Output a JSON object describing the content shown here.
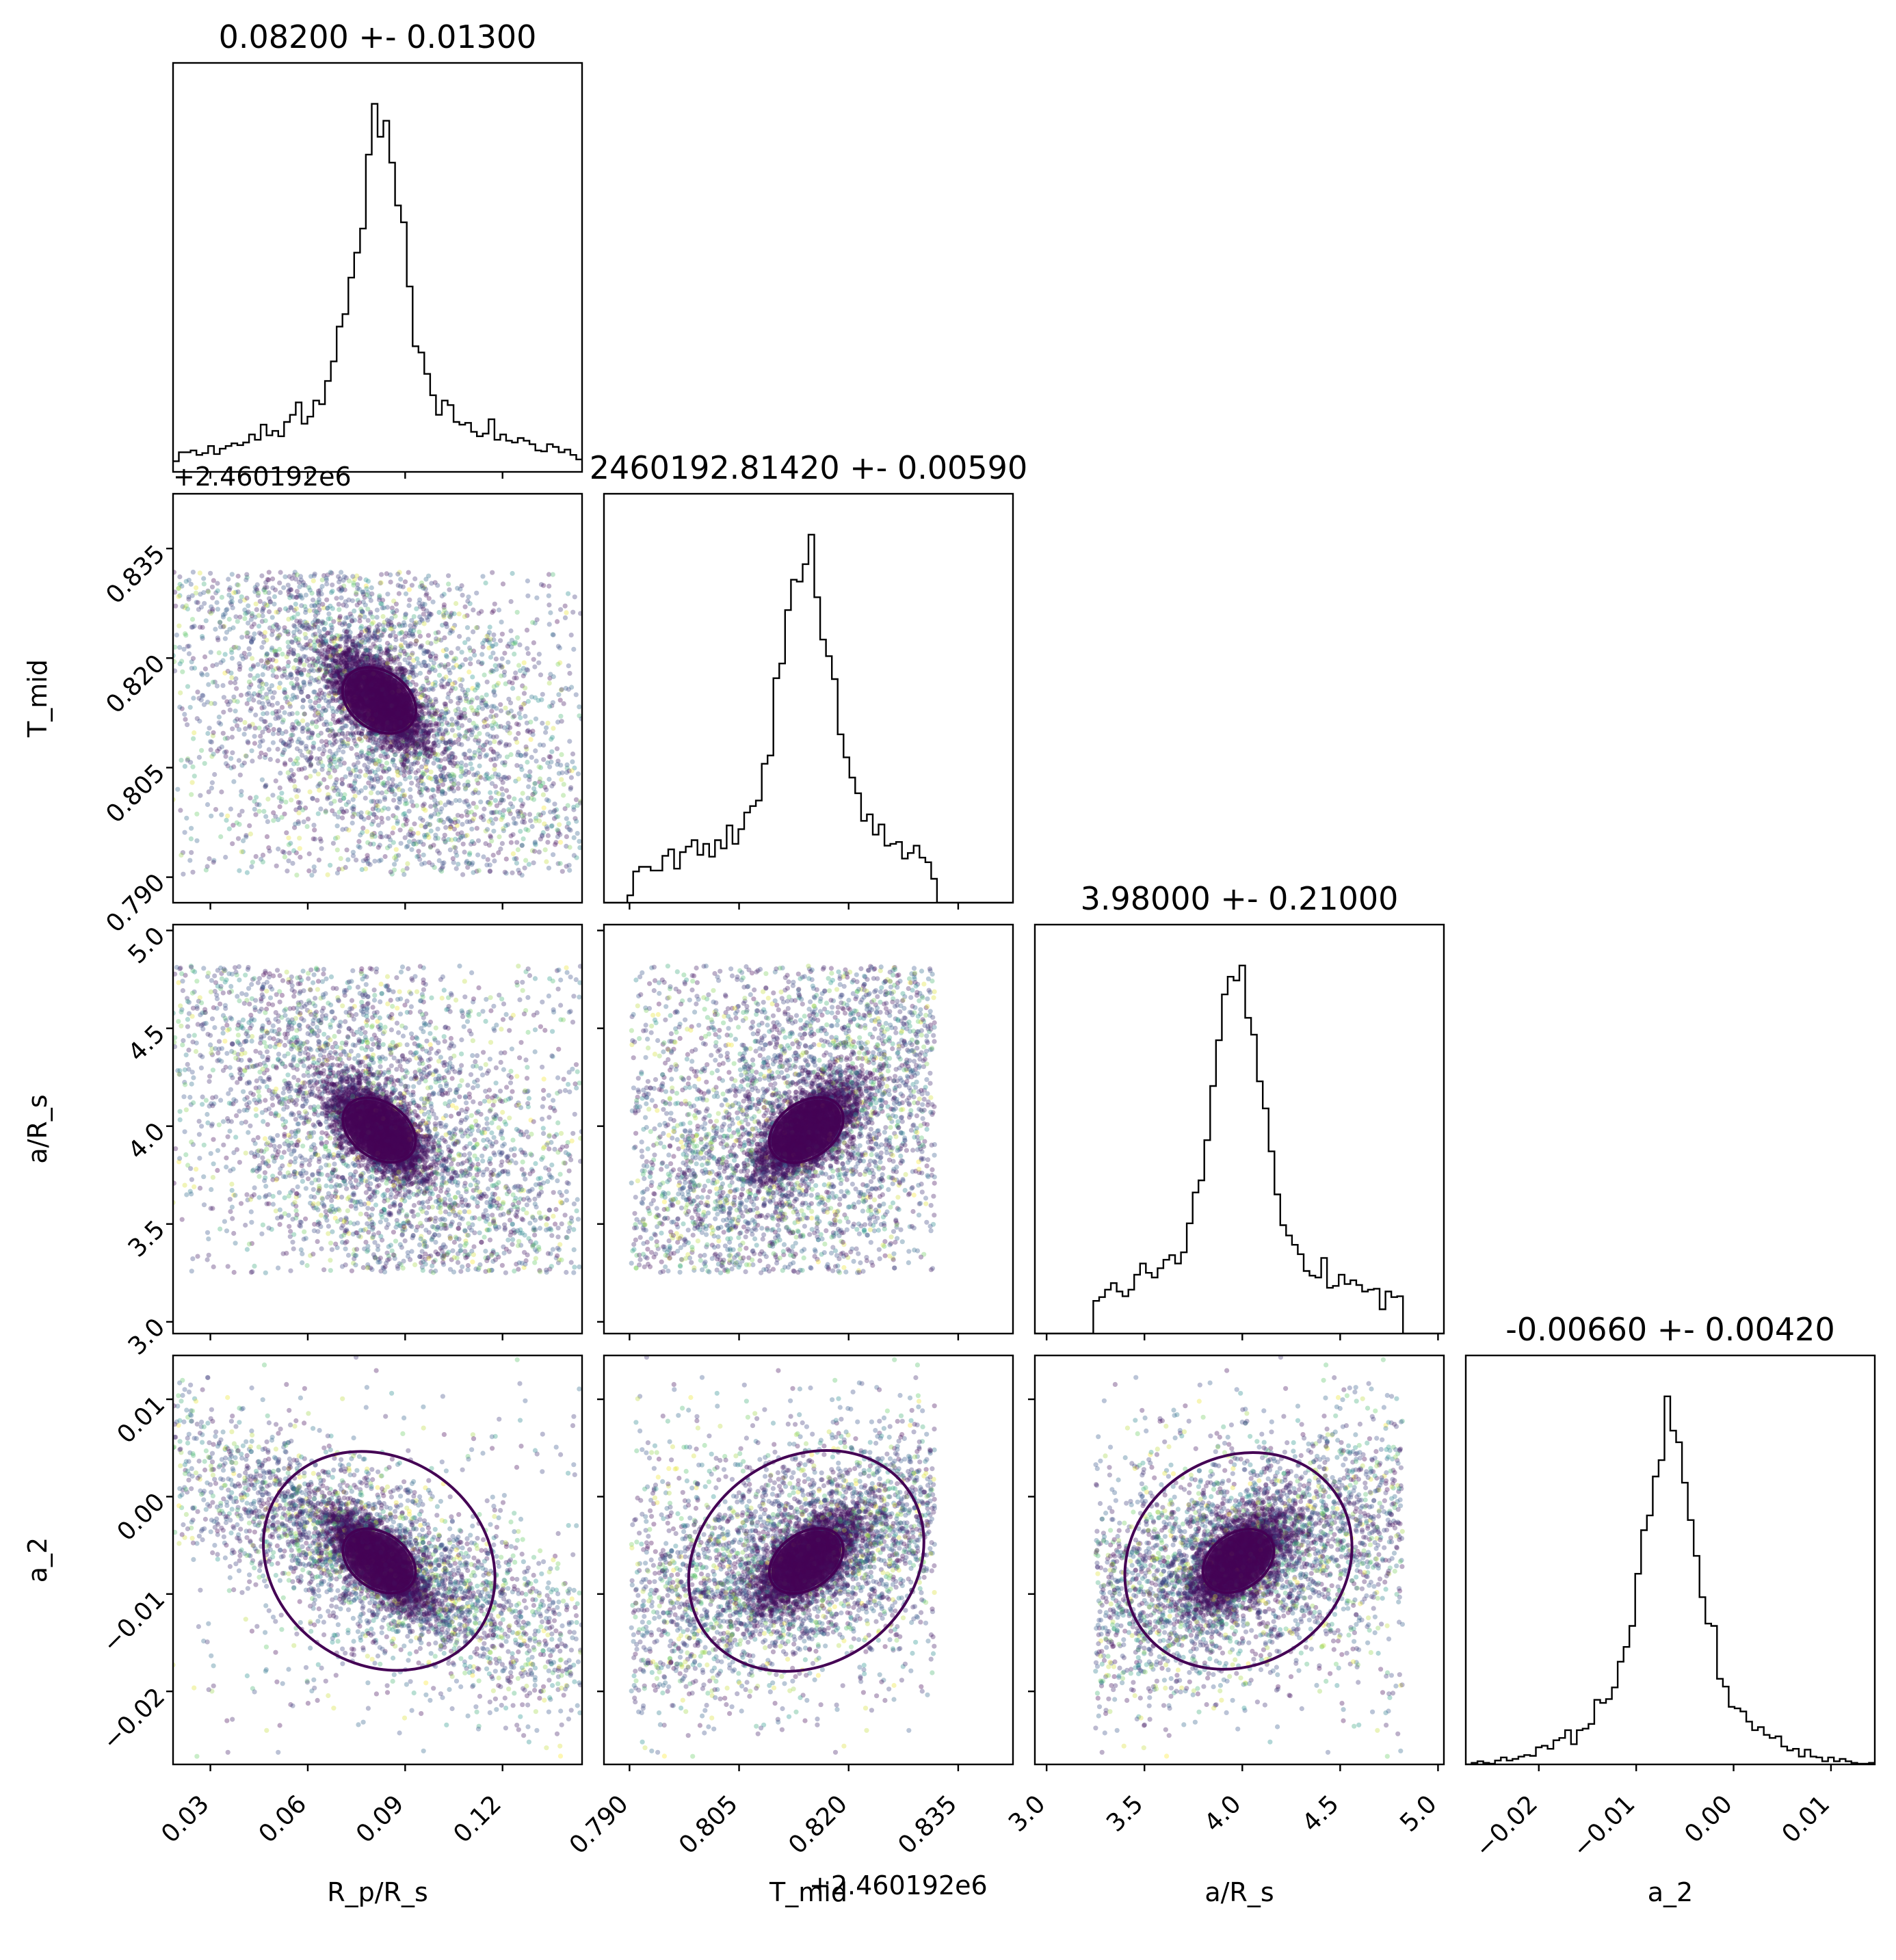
{
  "chart_data": {
    "type": "scatter",
    "subtype": "corner-plot",
    "parameters": [
      {
        "key": "rp",
        "axis_label": "R_p/R_s",
        "tex": "R<tspan baseline-shift='sub' font-size='28' font-style='italic'>p</tspan>/R<tspan baseline-shift='sub' font-size='28' font-style='italic'>s</tspan>",
        "title": "0.08200 +- 0.01300",
        "mean": 0.082,
        "sigma": 0.013,
        "range": [
          0.0185,
          0.1445
        ],
        "ticks": [
          0.03,
          0.06,
          0.09,
          0.12
        ],
        "tick_labels": [
          "0.03",
          "0.06",
          "0.09",
          "0.12"
        ],
        "prior": [
          0.0185,
          0.1445
        ]
      },
      {
        "key": "tmid",
        "axis_label": "T_mid",
        "title": "2460192.81420 +- 0.00590",
        "mean": 0.8142,
        "sigma": 0.0059,
        "range": [
          0.7865,
          0.8425
        ],
        "ticks": [
          0.79,
          0.805,
          0.82,
          0.835
        ],
        "tick_labels": [
          "0.790",
          "0.805",
          "0.820",
          "0.835"
        ],
        "offset": "+2.460192e6",
        "prior": [
          0.7902,
          0.8318
        ]
      },
      {
        "key": "ars",
        "axis_label": "a/R_s",
        "title": "3.98000 +- 0.21000",
        "mean": 3.98,
        "sigma": 0.21,
        "range": [
          2.94,
          5.03
        ],
        "ticks": [
          3.0,
          3.5,
          4.0,
          4.5,
          5.0
        ],
        "tick_labels": [
          "3.0",
          "3.5",
          "4.0",
          "4.5",
          "5.0"
        ],
        "prior": [
          3.25,
          4.82
        ]
      },
      {
        "key": "a2",
        "axis_label": "a_2",
        "title": "-0.00660 +- 0.00420",
        "mean": -0.0066,
        "sigma": 0.0042,
        "range": [
          -0.0275,
          0.0145
        ],
        "ticks": [
          -0.02,
          -0.01,
          0.0,
          0.01
        ],
        "tick_labels": [
          "−0.02",
          "−0.01",
          "0.00",
          "0.01"
        ],
        "prior": [
          -0.0275,
          0.0145
        ]
      }
    ],
    "colormap": "viridis",
    "colors": {
      "axes": "#000000",
      "contour": "#440154",
      "histogram": "#000000",
      "viridis_low": "#440154",
      "viridis_mid": "#21918c",
      "viridis_high": "#fde725"
    },
    "contour_levels": "1-sigma and 2-sigma density contours",
    "grid": false,
    "legend": "none"
  }
}
